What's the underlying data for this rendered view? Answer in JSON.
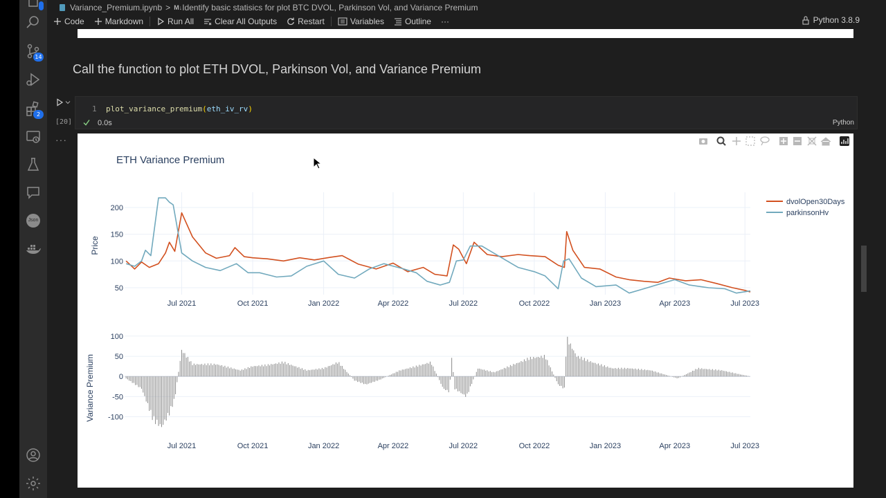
{
  "breadcrumb": {
    "file": "Variance_Premium.ipynb",
    "sep": ">",
    "md_tag": "M↓",
    "cell": "Identify basic statisics for plot BTC DVOL, Parkinson Vol, and Variance Premium"
  },
  "toolbar": {
    "code": "Code",
    "markdown": "Markdown",
    "run_all": "Run All",
    "clear_outputs": "Clear All Outputs",
    "restart": "Restart",
    "variables": "Variables",
    "outline": "Outline",
    "more": "···",
    "kernel": "Python 3.8.9"
  },
  "activity": {
    "scm_badge": "14",
    "ext_badge": "2",
    "json_label": "Json"
  },
  "markdown_heading": "Call the function to plot ETH DVOL, Parkinson Vol, and Variance Premium",
  "cell": {
    "line_no": "1",
    "fn": "plot_variance_premium",
    "arg": "eth_iv_rv",
    "exec_count": "[20]",
    "duration": "0.0s",
    "lang": "Python",
    "output_more": "···"
  },
  "colors": {
    "dvol": "#d2501f",
    "parkinson": "#71a9bd",
    "bars": "#8a8a8a",
    "accent": "#1f6feb"
  },
  "chart_data": [
    {
      "type": "line",
      "title": "ETH Variance Premium",
      "ylabel": "Price",
      "xlabel": "",
      "x_ticks": [
        "Jul 2021",
        "Oct 2021",
        "Jan 2022",
        "Apr 2022",
        "Jul 2022",
        "Oct 2022",
        "Jan 2023",
        "Apr 2023",
        "Jul 2023"
      ],
      "xlim": [
        "2021-04-18",
        "2023-07-08"
      ],
      "ylim": [
        37,
        222
      ],
      "y_ticks": [
        50,
        100,
        150,
        200
      ],
      "legend": "top-right",
      "grid": true,
      "series": [
        {
          "name": "dvolOpen30Days",
          "color": "#d2501f",
          "x": [
            "2021-04-20",
            "2021-05-01",
            "2021-05-10",
            "2021-05-20",
            "2021-06-01",
            "2021-06-10",
            "2021-06-15",
            "2021-06-22",
            "2021-07-01",
            "2021-07-15",
            "2021-08-01",
            "2021-08-15",
            "2021-09-01",
            "2021-09-08",
            "2021-09-20",
            "2021-10-01",
            "2021-10-20",
            "2021-11-10",
            "2021-12-01",
            "2021-12-20",
            "2022-01-10",
            "2022-01-25",
            "2022-02-15",
            "2022-03-10",
            "2022-04-01",
            "2022-04-20",
            "2022-05-10",
            "2022-05-25",
            "2022-06-10",
            "2022-06-18",
            "2022-06-25",
            "2022-07-05",
            "2022-07-15",
            "2022-08-01",
            "2022-08-20",
            "2022-09-10",
            "2022-09-25",
            "2022-10-15",
            "2022-11-01",
            "2022-11-09",
            "2022-11-12",
            "2022-11-20",
            "2022-12-05",
            "2022-12-25",
            "2023-01-15",
            "2023-02-01",
            "2023-02-20",
            "2023-03-10",
            "2023-03-25",
            "2023-04-15",
            "2023-05-05",
            "2023-05-25",
            "2023-06-15",
            "2023-07-01",
            "2023-07-08"
          ],
          "values": [
            100,
            85,
            98,
            88,
            95,
            115,
            135,
            118,
            190,
            145,
            115,
            105,
            110,
            125,
            108,
            106,
            104,
            100,
            106,
            102,
            107,
            110,
            94,
            85,
            96,
            80,
            88,
            75,
            72,
            130,
            122,
            95,
            135,
            112,
            108,
            112,
            110,
            108,
            92,
            88,
            155,
            120,
            88,
            85,
            70,
            65,
            62,
            60,
            68,
            63,
            65,
            58,
            50,
            45,
            42
          ]
        },
        {
          "name": "parkinsonHv",
          "color": "#71a9bd",
          "x": [
            "2021-04-20",
            "2021-05-01",
            "2021-05-10",
            "2021-05-15",
            "2021-05-22",
            "2021-06-01",
            "2021-06-10",
            "2021-06-15",
            "2021-06-20",
            "2021-07-01",
            "2021-07-15",
            "2021-08-01",
            "2021-08-20",
            "2021-09-10",
            "2021-09-25",
            "2021-10-10",
            "2021-11-01",
            "2021-11-20",
            "2021-12-10",
            "2022-01-01",
            "2022-01-20",
            "2022-02-10",
            "2022-03-01",
            "2022-03-20",
            "2022-04-15",
            "2022-05-01",
            "2022-05-15",
            "2022-06-01",
            "2022-06-13",
            "2022-06-18",
            "2022-06-22",
            "2022-07-01",
            "2022-07-10",
            "2022-07-25",
            "2022-08-15",
            "2022-09-10",
            "2022-10-01",
            "2022-10-15",
            "2022-10-25",
            "2022-11-01",
            "2022-11-08",
            "2022-11-15",
            "2022-12-01",
            "2022-12-20",
            "2023-01-15",
            "2023-02-01",
            "2023-02-20",
            "2023-03-15",
            "2023-04-01",
            "2023-04-20",
            "2023-05-15",
            "2023-06-05",
            "2023-06-20",
            "2023-07-08"
          ],
          "values": [
            95,
            90,
            100,
            120,
            110,
            218,
            218,
            210,
            205,
            115,
            100,
            88,
            82,
            95,
            78,
            78,
            70,
            72,
            90,
            100,
            75,
            68,
            85,
            95,
            85,
            78,
            62,
            55,
            60,
            82,
            100,
            102,
            128,
            128,
            110,
            88,
            80,
            72,
            58,
            48,
            100,
            104,
            68,
            52,
            55,
            40,
            48,
            58,
            65,
            55,
            50,
            48,
            40,
            44
          ]
        }
      ]
    },
    {
      "type": "bar",
      "title": "",
      "ylabel": "Variance Premium",
      "xlabel": "",
      "x_ticks": [
        "Jul 2021",
        "Oct 2021",
        "Jan 2022",
        "Apr 2022",
        "Jul 2022",
        "Oct 2022",
        "Jan 2023",
        "Apr 2023",
        "Jul 2023"
      ],
      "xlim": [
        "2021-04-18",
        "2023-07-08"
      ],
      "ylim": [
        -130,
        105
      ],
      "y_ticks": [
        -100,
        -50,
        0,
        50,
        100
      ],
      "grid": true,
      "color": "#8a8a8a",
      "x": [
        "2021-04-20",
        "2021-05-10",
        "2021-05-25",
        "2021-06-05",
        "2021-06-15",
        "2021-06-22",
        "2021-07-01",
        "2021-07-15",
        "2021-08-15",
        "2021-09-15",
        "2021-10-01",
        "2021-10-20",
        "2021-11-10",
        "2021-12-10",
        "2022-01-01",
        "2022-01-20",
        "2022-02-10",
        "2022-02-25",
        "2022-03-15",
        "2022-04-10",
        "2022-05-01",
        "2022-05-20",
        "2022-06-05",
        "2022-06-13",
        "2022-06-16",
        "2022-06-20",
        "2022-07-05",
        "2022-07-20",
        "2022-08-10",
        "2022-09-05",
        "2022-09-25",
        "2022-10-15",
        "2022-11-01",
        "2022-11-09",
        "2022-11-12",
        "2022-11-25",
        "2022-12-15",
        "2023-01-10",
        "2023-02-01",
        "2023-03-01",
        "2023-04-05",
        "2023-05-01",
        "2023-06-01",
        "2023-06-25",
        "2023-07-08"
      ],
      "values": [
        -5,
        -30,
        -105,
        -125,
        -90,
        -55,
        65,
        30,
        30,
        15,
        25,
        28,
        35,
        15,
        20,
        35,
        -10,
        -20,
        -8,
        15,
        25,
        35,
        -30,
        -38,
        50,
        -30,
        -50,
        20,
        10,
        30,
        45,
        50,
        -20,
        -30,
        95,
        50,
        35,
        20,
        20,
        15,
        -5,
        20,
        15,
        5,
        0
      ]
    }
  ]
}
